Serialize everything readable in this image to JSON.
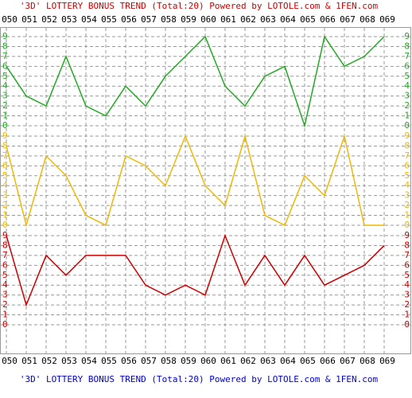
{
  "chart_data": {
    "type": "line",
    "title": "'3D' LOTTERY BONUS TREND (Total:20)  Powered by LOTOLE.com & 1FEN.com",
    "categories": [
      "050",
      "051",
      "052",
      "053",
      "054",
      "055",
      "056",
      "057",
      "058",
      "059",
      "060",
      "061",
      "062",
      "063",
      "064",
      "065",
      "066",
      "067",
      "068",
      "069"
    ],
    "series": [
      {
        "color": "#22aa22",
        "values": [
          6,
          3,
          2,
          7,
          2,
          1,
          4,
          2,
          5,
          7,
          9,
          4,
          2,
          5,
          6,
          0,
          9,
          6,
          7,
          9
        ]
      },
      {
        "color": "#f0b800",
        "values": [
          8,
          0,
          7,
          5,
          1,
          0,
          7,
          6,
          4,
          9,
          4,
          2,
          9,
          1,
          0,
          5,
          3,
          9,
          0,
          0
        ]
      },
      {
        "color": "#cc0000",
        "values": [
          9,
          2,
          7,
          5,
          7,
          7,
          7,
          4,
          3,
          4,
          3,
          9,
          4,
          7,
          4,
          7,
          4,
          5,
          6,
          8
        ]
      }
    ],
    "ylim": [
      0,
      9
    ],
    "yticks": [
      0,
      1,
      2,
      3,
      4,
      5,
      6,
      7,
      8,
      9
    ],
    "grid": true
  }
}
